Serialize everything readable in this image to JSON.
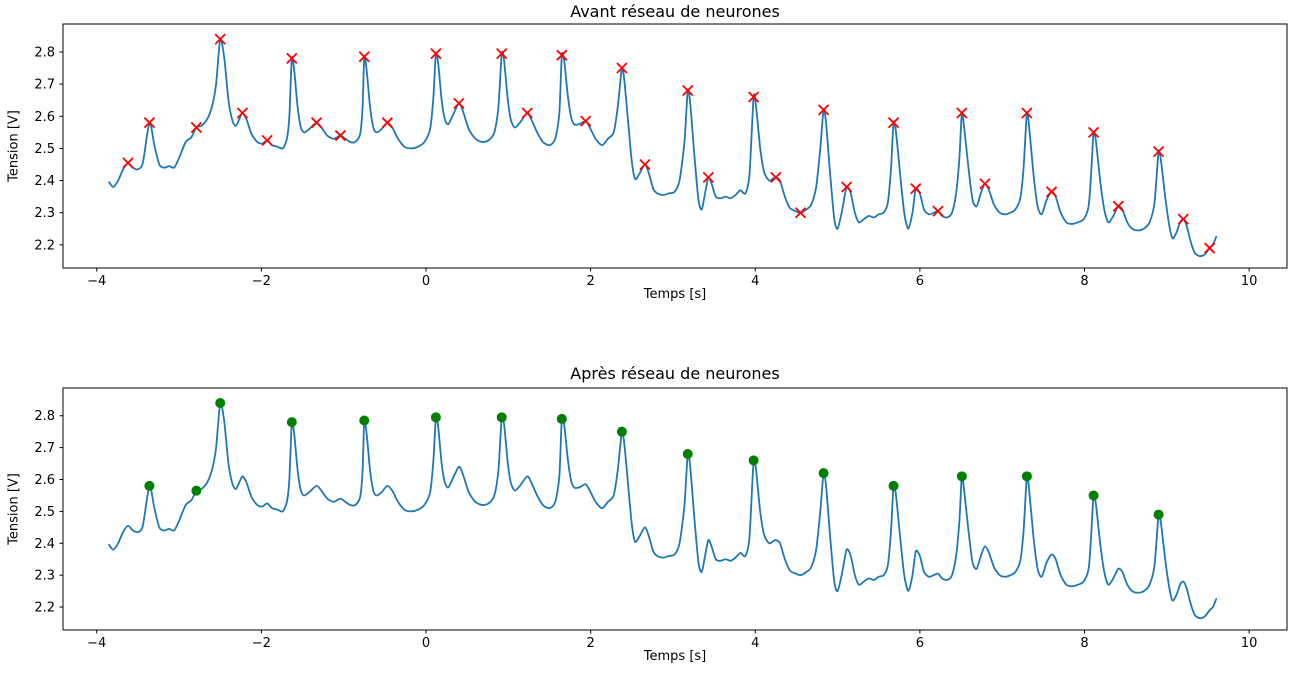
{
  "figure": {
    "background": "#ffffff",
    "line_color": "#1f77b4",
    "peak_marker_color_before": "#ff0000",
    "peak_marker_color_after": "#008000"
  },
  "chart_data": {
    "type": "line",
    "layout": "two stacked subplots sharing one voltage signal",
    "shared_series": {
      "name": "tension-signal",
      "color": "#1f77b4",
      "points": [
        [
          -3.85,
          2.395
        ],
        [
          -3.8,
          2.38
        ],
        [
          -3.74,
          2.4
        ],
        [
          -3.68,
          2.435
        ],
        [
          -3.62,
          2.455
        ],
        [
          -3.56,
          2.44
        ],
        [
          -3.5,
          2.435
        ],
        [
          -3.44,
          2.455
        ],
        [
          -3.36,
          2.58
        ],
        [
          -3.3,
          2.51
        ],
        [
          -3.24,
          2.45
        ],
        [
          -3.18,
          2.44
        ],
        [
          -3.12,
          2.445
        ],
        [
          -3.06,
          2.44
        ],
        [
          -3.0,
          2.47
        ],
        [
          -2.92,
          2.52
        ],
        [
          -2.85,
          2.535
        ],
        [
          -2.79,
          2.565
        ],
        [
          -2.73,
          2.57
        ],
        [
          -2.66,
          2.59
        ],
        [
          -2.6,
          2.63
        ],
        [
          -2.55,
          2.7
        ],
        [
          -2.5,
          2.84
        ],
        [
          -2.45,
          2.78
        ],
        [
          -2.4,
          2.65
        ],
        [
          -2.35,
          2.585
        ],
        [
          -2.31,
          2.57
        ],
        [
          -2.27,
          2.59
        ],
        [
          -2.23,
          2.61
        ],
        [
          -2.18,
          2.59
        ],
        [
          -2.12,
          2.545
        ],
        [
          -2.05,
          2.52
        ],
        [
          -1.99,
          2.515
        ],
        [
          -1.93,
          2.525
        ],
        [
          -1.87,
          2.51
        ],
        [
          -1.8,
          2.505
        ],
        [
          -1.74,
          2.5
        ],
        [
          -1.69,
          2.53
        ],
        [
          -1.66,
          2.6
        ],
        [
          -1.63,
          2.78
        ],
        [
          -1.6,
          2.74
        ],
        [
          -1.56,
          2.63
        ],
        [
          -1.52,
          2.565
        ],
        [
          -1.48,
          2.55
        ],
        [
          -1.42,
          2.56
        ],
        [
          -1.33,
          2.58
        ],
        [
          -1.27,
          2.565
        ],
        [
          -1.2,
          2.54
        ],
        [
          -1.12,
          2.53
        ],
        [
          -1.04,
          2.54
        ],
        [
          -0.98,
          2.53
        ],
        [
          -0.92,
          2.52
        ],
        [
          -0.86,
          2.52
        ],
        [
          -0.8,
          2.545
        ],
        [
          -0.77,
          2.63
        ],
        [
          -0.75,
          2.785
        ],
        [
          -0.72,
          2.74
        ],
        [
          -0.68,
          2.63
        ],
        [
          -0.64,
          2.565
        ],
        [
          -0.6,
          2.55
        ],
        [
          -0.54,
          2.56
        ],
        [
          -0.47,
          2.58
        ],
        [
          -0.41,
          2.565
        ],
        [
          -0.34,
          2.53
        ],
        [
          -0.26,
          2.505
        ],
        [
          -0.18,
          2.5
        ],
        [
          -0.1,
          2.505
        ],
        [
          -0.02,
          2.52
        ],
        [
          0.05,
          2.56
        ],
        [
          0.09,
          2.66
        ],
        [
          0.12,
          2.795
        ],
        [
          0.15,
          2.76
        ],
        [
          0.19,
          2.65
        ],
        [
          0.23,
          2.59
        ],
        [
          0.27,
          2.575
        ],
        [
          0.32,
          2.6
        ],
        [
          0.4,
          2.64
        ],
        [
          0.45,
          2.615
        ],
        [
          0.52,
          2.56
        ],
        [
          0.6,
          2.53
        ],
        [
          0.68,
          2.52
        ],
        [
          0.76,
          2.525
        ],
        [
          0.83,
          2.55
        ],
        [
          0.88,
          2.63
        ],
        [
          0.92,
          2.795
        ],
        [
          0.95,
          2.77
        ],
        [
          0.99,
          2.66
        ],
        [
          1.03,
          2.59
        ],
        [
          1.08,
          2.565
        ],
        [
          1.14,
          2.58
        ],
        [
          1.23,
          2.61
        ],
        [
          1.28,
          2.59
        ],
        [
          1.35,
          2.55
        ],
        [
          1.42,
          2.52
        ],
        [
          1.5,
          2.51
        ],
        [
          1.57,
          2.53
        ],
        [
          1.62,
          2.61
        ],
        [
          1.65,
          2.79
        ],
        [
          1.68,
          2.77
        ],
        [
          1.72,
          2.67
        ],
        [
          1.76,
          2.6
        ],
        [
          1.8,
          2.575
        ],
        [
          1.86,
          2.575
        ],
        [
          1.94,
          2.585
        ],
        [
          1.99,
          2.565
        ],
        [
          2.06,
          2.53
        ],
        [
          2.14,
          2.51
        ],
        [
          2.21,
          2.53
        ],
        [
          2.28,
          2.55
        ],
        [
          2.33,
          2.63
        ],
        [
          2.38,
          2.75
        ],
        [
          2.41,
          2.71
        ],
        [
          2.46,
          2.57
        ],
        [
          2.5,
          2.46
        ],
        [
          2.54,
          2.405
        ],
        [
          2.59,
          2.42
        ],
        [
          2.66,
          2.45
        ],
        [
          2.71,
          2.42
        ],
        [
          2.76,
          2.375
        ],
        [
          2.81,
          2.36
        ],
        [
          2.88,
          2.355
        ],
        [
          2.95,
          2.36
        ],
        [
          3.02,
          2.365
        ],
        [
          3.08,
          2.4
        ],
        [
          3.14,
          2.52
        ],
        [
          3.18,
          2.68
        ],
        [
          3.21,
          2.64
        ],
        [
          3.26,
          2.48
        ],
        [
          3.31,
          2.34
        ],
        [
          3.35,
          2.31
        ],
        [
          3.39,
          2.36
        ],
        [
          3.43,
          2.41
        ],
        [
          3.47,
          2.39
        ],
        [
          3.52,
          2.35
        ],
        [
          3.58,
          2.345
        ],
        [
          3.64,
          2.35
        ],
        [
          3.7,
          2.345
        ],
        [
          3.76,
          2.355
        ],
        [
          3.82,
          2.37
        ],
        [
          3.88,
          2.36
        ],
        [
          3.93,
          2.42
        ],
        [
          3.98,
          2.66
        ],
        [
          4.01,
          2.63
        ],
        [
          4.06,
          2.5
        ],
        [
          4.11,
          2.425
        ],
        [
          4.17,
          2.4
        ],
        [
          4.21,
          2.405
        ],
        [
          4.25,
          2.41
        ],
        [
          4.3,
          2.4
        ],
        [
          4.36,
          2.35
        ],
        [
          4.42,
          2.315
        ],
        [
          4.49,
          2.305
        ],
        [
          4.55,
          2.3
        ],
        [
          4.62,
          2.31
        ],
        [
          4.68,
          2.325
        ],
        [
          4.74,
          2.38
        ],
        [
          4.79,
          2.5
        ],
        [
          4.83,
          2.62
        ],
        [
          4.86,
          2.58
        ],
        [
          4.91,
          2.42
        ],
        [
          4.96,
          2.28
        ],
        [
          5.0,
          2.25
        ],
        [
          5.05,
          2.3
        ],
        [
          5.11,
          2.38
        ],
        [
          5.16,
          2.36
        ],
        [
          5.21,
          2.3
        ],
        [
          5.26,
          2.27
        ],
        [
          5.32,
          2.28
        ],
        [
          5.38,
          2.29
        ],
        [
          5.44,
          2.285
        ],
        [
          5.5,
          2.295
        ],
        [
          5.56,
          2.3
        ],
        [
          5.61,
          2.33
        ],
        [
          5.65,
          2.44
        ],
        [
          5.68,
          2.58
        ],
        [
          5.71,
          2.55
        ],
        [
          5.76,
          2.42
        ],
        [
          5.81,
          2.3
        ],
        [
          5.86,
          2.25
        ],
        [
          5.91,
          2.3
        ],
        [
          5.95,
          2.375
        ],
        [
          6.0,
          2.36
        ],
        [
          6.05,
          2.31
        ],
        [
          6.11,
          2.295
        ],
        [
          6.17,
          2.3
        ],
        [
          6.22,
          2.305
        ],
        [
          6.27,
          2.29
        ],
        [
          6.33,
          2.285
        ],
        [
          6.39,
          2.3
        ],
        [
          6.44,
          2.36
        ],
        [
          6.48,
          2.47
        ],
        [
          6.51,
          2.61
        ],
        [
          6.54,
          2.56
        ],
        [
          6.59,
          2.44
        ],
        [
          6.64,
          2.34
        ],
        [
          6.69,
          2.32
        ],
        [
          6.74,
          2.36
        ],
        [
          6.79,
          2.39
        ],
        [
          6.84,
          2.37
        ],
        [
          6.9,
          2.325
        ],
        [
          6.97,
          2.3
        ],
        [
          7.04,
          2.295
        ],
        [
          7.1,
          2.3
        ],
        [
          7.16,
          2.31
        ],
        [
          7.22,
          2.345
        ],
        [
          7.26,
          2.44
        ],
        [
          7.3,
          2.61
        ],
        [
          7.33,
          2.56
        ],
        [
          7.38,
          2.42
        ],
        [
          7.43,
          2.32
        ],
        [
          7.48,
          2.295
        ],
        [
          7.54,
          2.34
        ],
        [
          7.6,
          2.365
        ],
        [
          7.65,
          2.35
        ],
        [
          7.71,
          2.3
        ],
        [
          7.78,
          2.27
        ],
        [
          7.85,
          2.265
        ],
        [
          7.92,
          2.27
        ],
        [
          7.99,
          2.28
        ],
        [
          8.05,
          2.32
        ],
        [
          8.08,
          2.42
        ],
        [
          8.11,
          2.55
        ],
        [
          8.14,
          2.52
        ],
        [
          8.19,
          2.4
        ],
        [
          8.24,
          2.31
        ],
        [
          8.29,
          2.27
        ],
        [
          8.35,
          2.29
        ],
        [
          8.41,
          2.32
        ],
        [
          8.46,
          2.31
        ],
        [
          8.52,
          2.27
        ],
        [
          8.58,
          2.25
        ],
        [
          8.65,
          2.245
        ],
        [
          8.72,
          2.25
        ],
        [
          8.79,
          2.27
        ],
        [
          8.85,
          2.33
        ],
        [
          8.9,
          2.49
        ],
        [
          8.93,
          2.46
        ],
        [
          8.98,
          2.35
        ],
        [
          9.03,
          2.26
        ],
        [
          9.07,
          2.22
        ],
        [
          9.12,
          2.24
        ],
        [
          9.16,
          2.27
        ],
        [
          9.2,
          2.28
        ],
        [
          9.24,
          2.26
        ],
        [
          9.29,
          2.21
        ],
        [
          9.34,
          2.175
        ],
        [
          9.4,
          2.165
        ],
        [
          9.46,
          2.17
        ],
        [
          9.52,
          2.19
        ],
        [
          9.56,
          2.2
        ],
        [
          9.6,
          2.225
        ]
      ]
    },
    "charts": [
      {
        "title": "Avant réseau de neurones",
        "xlabel": "Temps [s]",
        "ylabel": "Tension [V]",
        "xlim": [
          -4.41,
          10.46
        ],
        "ylim": [
          2.128,
          2.887
        ],
        "xticks": [
          -4,
          -2,
          0,
          2,
          4,
          6,
          8,
          10
        ],
        "yticks": [
          2.2,
          2.3,
          2.4,
          2.5,
          2.6,
          2.7,
          2.8
        ],
        "grid": false,
        "markers": {
          "shape": "x",
          "color": "#ff0000",
          "size": 10,
          "points": [
            [
              -3.62,
              2.455
            ],
            [
              -3.36,
              2.58
            ],
            [
              -2.79,
              2.565
            ],
            [
              -2.5,
              2.84
            ],
            [
              -2.23,
              2.61
            ],
            [
              -1.93,
              2.525
            ],
            [
              -1.63,
              2.78
            ],
            [
              -1.33,
              2.58
            ],
            [
              -1.04,
              2.54
            ],
            [
              -0.75,
              2.785
            ],
            [
              -0.47,
              2.58
            ],
            [
              0.12,
              2.795
            ],
            [
              0.4,
              2.64
            ],
            [
              0.92,
              2.795
            ],
            [
              1.23,
              2.61
            ],
            [
              1.65,
              2.79
            ],
            [
              1.94,
              2.585
            ],
            [
              2.38,
              2.75
            ],
            [
              2.66,
              2.45
            ],
            [
              3.18,
              2.68
            ],
            [
              3.43,
              2.41
            ],
            [
              3.98,
              2.66
            ],
            [
              4.25,
              2.41
            ],
            [
              4.55,
              2.3
            ],
            [
              4.83,
              2.62
            ],
            [
              5.11,
              2.38
            ],
            [
              5.68,
              2.58
            ],
            [
              5.95,
              2.375
            ],
            [
              6.22,
              2.305
            ],
            [
              6.51,
              2.61
            ],
            [
              6.79,
              2.39
            ],
            [
              7.3,
              2.61
            ],
            [
              7.6,
              2.365
            ],
            [
              8.11,
              2.55
            ],
            [
              8.41,
              2.32
            ],
            [
              8.9,
              2.49
            ],
            [
              9.2,
              2.28
            ],
            [
              9.52,
              2.19
            ]
          ]
        }
      },
      {
        "title": "Après réseau de neurones",
        "xlabel": "Temps [s]",
        "ylabel": "Tension [V]",
        "xlim": [
          -4.41,
          10.46
        ],
        "ylim": [
          2.128,
          2.887
        ],
        "xticks": [
          -4,
          -2,
          0,
          2,
          4,
          6,
          8,
          10
        ],
        "yticks": [
          2.2,
          2.3,
          2.4,
          2.5,
          2.6,
          2.7,
          2.8
        ],
        "grid": false,
        "markers": {
          "shape": "dot",
          "color": "#008000",
          "size": 10,
          "points": [
            [
              -3.36,
              2.58
            ],
            [
              -2.79,
              2.565
            ],
            [
              -2.5,
              2.84
            ],
            [
              -1.63,
              2.78
            ],
            [
              -0.75,
              2.785
            ],
            [
              0.12,
              2.795
            ],
            [
              0.92,
              2.795
            ],
            [
              1.65,
              2.79
            ],
            [
              2.38,
              2.75
            ],
            [
              3.18,
              2.68
            ],
            [
              3.98,
              2.66
            ],
            [
              4.83,
              2.62
            ],
            [
              5.68,
              2.58
            ],
            [
              6.51,
              2.61
            ],
            [
              7.3,
              2.61
            ],
            [
              8.11,
              2.55
            ],
            [
              8.9,
              2.49
            ]
          ]
        }
      }
    ]
  }
}
